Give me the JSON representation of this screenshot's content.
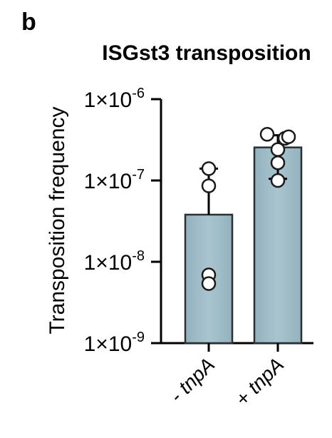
{
  "chart_data": {
    "panel_label": "b",
    "type": "bar",
    "title": "ISGst3 transposition",
    "xlabel": "",
    "ylabel": "Transposition frequency",
    "y_scale": "log",
    "ylim": [
      1e-09,
      1e-06
    ],
    "yticks": [
      {
        "value": 1e-06,
        "mant": "1×10",
        "exp": "-6"
      },
      {
        "value": 1e-07,
        "mant": "1×10",
        "exp": "-7"
      },
      {
        "value": 1e-08,
        "mant": "1×10",
        "exp": "-8"
      },
      {
        "value": 1e-09,
        "mant": "1×10",
        "exp": "-9"
      }
    ],
    "categories": [
      {
        "prefix": "- ",
        "name": "tnpA"
      },
      {
        "prefix": "+ ",
        "name": "tnpA"
      }
    ],
    "values": [
      3.8e-08,
      2.55e-07
    ],
    "error_upper": [
      1.4e-07,
      3.6e-07
    ],
    "error_lower": [
      null,
      1.05e-07
    ],
    "points": [
      [
        1.4e-07,
        8.6e-08,
        6.9e-09,
        5.4e-09
      ],
      [
        3.7e-07,
        3.3e-07,
        2.4e-07,
        1.65e-07,
        1e-07,
        3.45e-07
      ]
    ],
    "colors": {
      "bar_fill": "#a9c4cf",
      "bar_edge": "#2a2f33",
      "point_fill": "#ffffff",
      "point_edge": "#1a1a1a"
    }
  }
}
